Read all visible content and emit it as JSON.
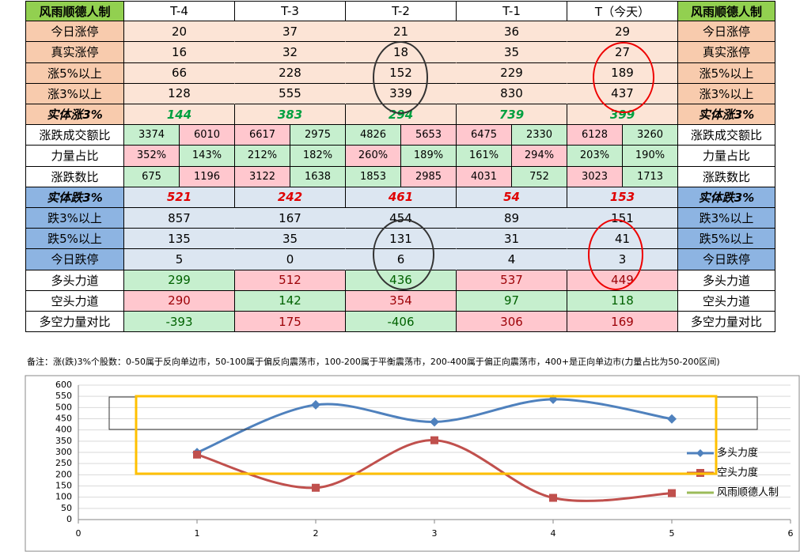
{
  "table": {
    "header": [
      "风雨顺德人制",
      "T-4",
      "T-3",
      "T-2",
      "T-1",
      "T（今天）",
      "风雨顺德人制"
    ],
    "rows": [
      {
        "label": "今日涨停",
        "cells": [
          20,
          37,
          21,
          36,
          29
        ]
      },
      {
        "label": "真实涨停",
        "cells": [
          16,
          32,
          18,
          35,
          27
        ]
      },
      {
        "label": "涨5%以上",
        "cells": [
          66,
          228,
          152,
          229,
          189
        ]
      },
      {
        "label": "涨3%以上",
        "cells": [
          128,
          555,
          339,
          830,
          437
        ]
      },
      {
        "label": "实体涨3%",
        "cells": [
          144,
          383,
          294,
          739,
          399
        ]
      },
      {
        "label": "涨跌成交额比",
        "cells": [
          [
            3374,
            6010
          ],
          [
            6617,
            2975
          ],
          [
            4826,
            5653
          ],
          [
            6475,
            2330
          ],
          [
            6128,
            3260
          ]
        ],
        "fills": [
          [
            "#c6efce",
            "#ffc7ce"
          ],
          [
            "#ffc7ce",
            "#c6efce"
          ],
          [
            "#c6efce",
            "#ffc7ce"
          ],
          [
            "#ffc7ce",
            "#c6efce"
          ],
          [
            "#ffc7ce",
            "#c6efce"
          ]
        ]
      },
      {
        "label": "力量占比",
        "cells": [
          [
            "352%",
            "143%"
          ],
          [
            "212%",
            "182%"
          ],
          [
            "260%",
            "189%"
          ],
          [
            "161%",
            "294%"
          ],
          [
            "203%",
            "190%"
          ]
        ],
        "fills": [
          [
            "#ffc7ce",
            "#c6efce"
          ],
          [
            "#c6efce",
            "#c6efce"
          ],
          [
            "#ffc7ce",
            "#c6efce"
          ],
          [
            "#c6efce",
            "#ffc7ce"
          ],
          [
            "#c6efce",
            "#c6efce"
          ]
        ]
      },
      {
        "label": "涨跌数比",
        "cells": [
          [
            675,
            1196
          ],
          [
            3122,
            1638
          ],
          [
            1853,
            2985
          ],
          [
            4031,
            752
          ],
          [
            3023,
            1713
          ]
        ],
        "fills": [
          [
            "#c6efce",
            "#ffc7ce"
          ],
          [
            "#ffc7ce",
            "#c6efce"
          ],
          [
            "#c6efce",
            "#ffc7ce"
          ],
          [
            "#ffc7ce",
            "#c6efce"
          ],
          [
            "#ffc7ce",
            "#c6efce"
          ]
        ]
      },
      {
        "label": "实体跌3%",
        "cells": [
          521,
          242,
          461,
          54,
          153
        ]
      },
      {
        "label": "跌3%以上",
        "cells": [
          857,
          167,
          454,
          89,
          151
        ]
      },
      {
        "label": "跌5%以上",
        "cells": [
          135,
          35,
          131,
          31,
          41
        ]
      },
      {
        "label": "今日跌停",
        "cells": [
          5,
          0,
          6,
          4,
          3
        ]
      },
      {
        "label": "多头力道",
        "cells": [
          299,
          512,
          436,
          537,
          449
        ],
        "fills": [
          "#c6efce",
          "#ffc7ce",
          "#c6efce",
          "#ffc7ce",
          "#ffc7ce"
        ]
      },
      {
        "label": "空头力道",
        "cells": [
          290,
          142,
          354,
          97,
          118
        ],
        "fills": [
          "#ffc7ce",
          "#c6efce",
          "#ffc7ce",
          "#c6efce",
          "#c6efce"
        ]
      },
      {
        "label": "多空力量对比",
        "cells": [
          -393,
          175,
          -406,
          306,
          169
        ],
        "fills": [
          "#c6efce",
          "#ffc7ce",
          "#c6efce",
          "#ffc7ce",
          "#ffc7ce"
        ]
      }
    ],
    "note": "备注：涨(跌)3%个股数：0-50属于反向单边市，50-100属于偏反向震荡市，100-200属于平衡震荡市，200-400属于偏正向震荡市，400+是正向单边市(力量占比为50-200区间)"
  },
  "chart_data": {
    "type": "line",
    "x": [
      1,
      2,
      3,
      4,
      5
    ],
    "xlim": [
      0,
      6
    ],
    "xticks": [
      0,
      1,
      2,
      3,
      4,
      5,
      6
    ],
    "ylim": [
      0,
      600
    ],
    "yticks": [
      0,
      50,
      100,
      150,
      200,
      250,
      300,
      350,
      400,
      450,
      500,
      550,
      600
    ],
    "grid": true,
    "legend": "right",
    "smooth": true,
    "series": [
      {
        "name": "多头力度",
        "color": "#4f81bd",
        "marker": "diamond",
        "values": [
          299,
          512,
          436,
          537,
          449
        ]
      },
      {
        "name": "空头力度",
        "color": "#c0504d",
        "marker": "square",
        "values": [
          290,
          142,
          354,
          97,
          118
        ]
      },
      {
        "name": "风雨顺德人制",
        "color": "#9bbb59",
        "marker": "none",
        "values": [
          null,
          null,
          null,
          null,
          null
        ]
      }
    ]
  }
}
